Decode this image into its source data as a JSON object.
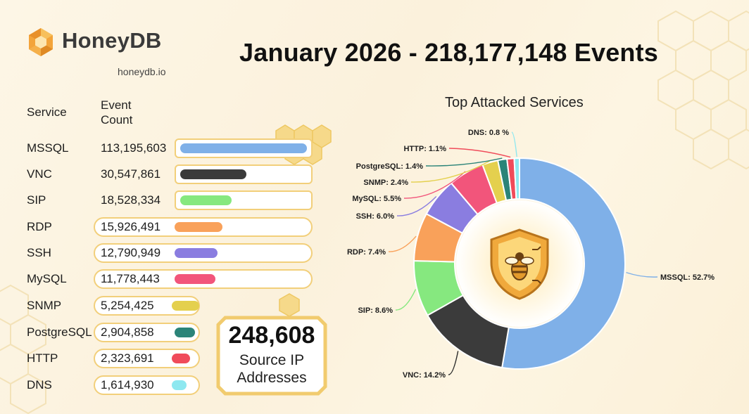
{
  "brand": {
    "name": "HoneyDB",
    "url": "honeydb.io"
  },
  "title": "January 2026 - 218,177,148 Events",
  "table": {
    "col_service": "Service",
    "col_count_line1": "Event",
    "col_count_line2": "Count"
  },
  "ip": {
    "count": "248,608",
    "label_line1": "Source IP",
    "label_line2": "Addresses"
  },
  "colors": {
    "MSSQL": "#7fb0e8",
    "VNC": "#3b3b3b",
    "SIP": "#86e87f",
    "RDP": "#f9a15a",
    "SSH": "#8a7de0",
    "MySQL": "#f2557b",
    "SNMP": "#e4d04e",
    "PostgreSQL": "#2b8478",
    "HTTP": "#f04b5a",
    "DNS": "#8ee8f0"
  },
  "chart_data": [
    {
      "type": "bar",
      "title": "",
      "categories": [
        "MSSQL",
        "VNC",
        "SIP",
        "RDP",
        "SSH",
        "MySQL",
        "SNMP",
        "PostgreSQL",
        "HTTP",
        "DNS"
      ],
      "values": [
        113195603,
        30547861,
        18528334,
        15926491,
        12790949,
        11778443,
        5254425,
        2904858,
        2323691,
        1614930
      ],
      "labels": [
        "113,195,603",
        "30,547,861",
        "18,528,334",
        "15,926,491",
        "12,790,949",
        "11,778,443",
        "5,254,425",
        "2,904,858",
        "2,323,691",
        "1,614,930"
      ]
    },
    {
      "type": "pie",
      "title": "Top Attacked Services",
      "categories": [
        "MSSQL",
        "VNC",
        "SIP",
        "RDP",
        "SSH",
        "MySQL",
        "SNMP",
        "PostgreSQL",
        "HTTP",
        "DNS"
      ],
      "values": [
        52.7,
        14.2,
        8.6,
        7.4,
        6.0,
        5.5,
        2.4,
        1.4,
        1.1,
        0.8
      ],
      "labels": [
        "MSSQL: 52.7%",
        "VNC: 14.2%",
        "SIP: 8.6%",
        "RDP: 7.4%",
        "SSH: 6.0%",
        "MySQL: 5.5%",
        "SNMP: 2.4%",
        "PostgreSQL: 1.4%",
        "HTTP: 1.1%",
        "DNS: 0.8 %"
      ]
    }
  ]
}
